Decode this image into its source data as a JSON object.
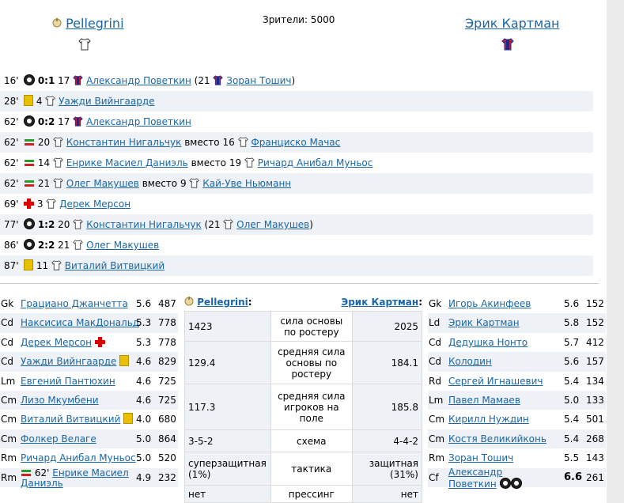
{
  "header": {
    "home_team": "Pellegrini",
    "away_team": "Эрик Картман",
    "spectators": "Зрители: 5000"
  },
  "events": [
    {
      "minute": "16'",
      "type": "goal",
      "score": "0:1",
      "num": "17",
      "shirt": "red",
      "player": "Александр Поветкин",
      "assist_prefix": "(21",
      "assist": "Зоран Тошич",
      "assist_suffix": ")"
    },
    {
      "minute": "28'",
      "type": "yellow",
      "num": "4",
      "shirt": "white",
      "player": "Уажди Вийнгаарде"
    },
    {
      "minute": "62'",
      "type": "goal",
      "score": "0:2",
      "num": "17",
      "shirt": "red",
      "player": "Александр Поветкин"
    },
    {
      "minute": "62'",
      "type": "sub",
      "num": "20",
      "shirt": "white",
      "player": "Константин Нигальчук",
      "instead": "вместо 16",
      "num2shirt": "white",
      "player2": "Франциско Мачас"
    },
    {
      "minute": "62'",
      "type": "sub",
      "num": "14",
      "shirt": "white",
      "player": "Енрике Масиел Даниэль",
      "instead": "вместо 19",
      "num2shirt": "white",
      "player2": "Ричард Анибал Муньос"
    },
    {
      "minute": "62'",
      "type": "sub",
      "num": "21",
      "shirt": "white",
      "player": "Олег Макушев",
      "instead": "вместо 9",
      "num2shirt": "white",
      "player2": "Кай-Уве Ньюманн"
    },
    {
      "minute": "69'",
      "type": "injury",
      "num": "3",
      "shirt": "white",
      "player": "Дерек Мерсон"
    },
    {
      "minute": "77'",
      "type": "goal",
      "score": "1:2",
      "num": "20",
      "shirt": "white",
      "player": "Константин Нигальчук",
      "assist_prefix": "(21",
      "assist": "Олег Макушев",
      "assist_suffix": ")",
      "assist_shirt": "white"
    },
    {
      "minute": "86'",
      "type": "goal",
      "score": "2:2",
      "num": "21",
      "shirt": "white",
      "player": "Олег Макушев"
    },
    {
      "minute": "87'",
      "type": "yellow",
      "num": "11",
      "shirt": "white",
      "player": "Виталий Витвицкий"
    }
  ],
  "home_lineup": [
    {
      "pos": "Gk",
      "name": "Грациано Джанчетта",
      "rating": "5.6",
      "power": "487"
    },
    {
      "pos": "Cd",
      "name": "Наксисиса МакДональд",
      "rating": "5.3",
      "power": "778"
    },
    {
      "pos": "Cd",
      "name": "Дерек Мерсон",
      "rating": "5.3",
      "power": "778",
      "icon": "injury"
    },
    {
      "pos": "Cd",
      "name": "Уажди Вийнгаарде",
      "rating": "4.6",
      "power": "829",
      "icon": "yellow"
    },
    {
      "pos": "Lm",
      "name": "Евгений Пантюхин",
      "rating": "4.6",
      "power": "725"
    },
    {
      "pos": "Cm",
      "name": "Лизо Мкумбени",
      "rating": "4.6",
      "power": "725"
    },
    {
      "pos": "Cm",
      "name": "Виталий Витвицкий",
      "rating": "4.0",
      "power": "680",
      "icon": "yellow"
    },
    {
      "pos": "Cm",
      "name": "Фолкер Велаге",
      "rating": "5.0",
      "power": "864"
    },
    {
      "pos": "Rm",
      "name": "Ричард Анибал Муньос",
      "rating": "5.0",
      "power": "520"
    },
    {
      "pos": "Rm",
      "name_prefix": "62'",
      "name": "Енрике Масиел Даниэль",
      "rating": "4.9",
      "power": "232",
      "icon": "sub"
    }
  ],
  "away_lineup": [
    {
      "pos": "Gk",
      "name": "Игорь Акинфеев",
      "rating": "5.6",
      "power": "152"
    },
    {
      "pos": "Ld",
      "name": "Эрик Картман",
      "rating": "5.8",
      "power": "152"
    },
    {
      "pos": "Cd",
      "name": "Дедушка Нонто",
      "rating": "5.7",
      "power": "412"
    },
    {
      "pos": "Cd",
      "name": "Колодин",
      "rating": "5.6",
      "power": "157"
    },
    {
      "pos": "Rd",
      "name": "Сергей Игнашевич",
      "rating": "5.4",
      "power": "134"
    },
    {
      "pos": "Lm",
      "name": "Павел Мамаев",
      "rating": "5.0",
      "power": "133"
    },
    {
      "pos": "Cm",
      "name": "Кирилл Нуждин",
      "rating": "5.4",
      "power": "501"
    },
    {
      "pos": "Cm",
      "name": "Костя Великийконь",
      "rating": "5.4",
      "power": "268"
    },
    {
      "pos": "Rm",
      "name": "Зоран Тошич",
      "rating": "5.5",
      "power": "143"
    },
    {
      "pos": "Cf",
      "name": "Александр Поветкин",
      "rating": "6.6",
      "power": "261",
      "icon": "2goals"
    }
  ],
  "comparison": {
    "home": "Pellegrini",
    "home_suffix": ":",
    "away": "Эрик Картман",
    "away_suffix": ":",
    "rows": [
      {
        "home": "1423",
        "label": "сила основы по ростеру",
        "away": "2025"
      },
      {
        "home": "129.4",
        "label": "средняя сила основы по ростеру",
        "away": "184.1"
      },
      {
        "home": "117.3",
        "label": "средняя сила игроков на поле",
        "away": "185.8"
      },
      {
        "home": "3-5-2",
        "label": "схема",
        "away": "4-4-2"
      },
      {
        "home": "суперзащитная (1%)",
        "label": "тактика",
        "away": "защитная (31%)"
      },
      {
        "home": "нет",
        "label": "прессинг",
        "away": "нет"
      }
    ]
  },
  "colors": {
    "link": "#1a66a8",
    "alt_row": "#eef1f5",
    "yellow_card": "#e8c000",
    "injury": "#dd0000"
  }
}
